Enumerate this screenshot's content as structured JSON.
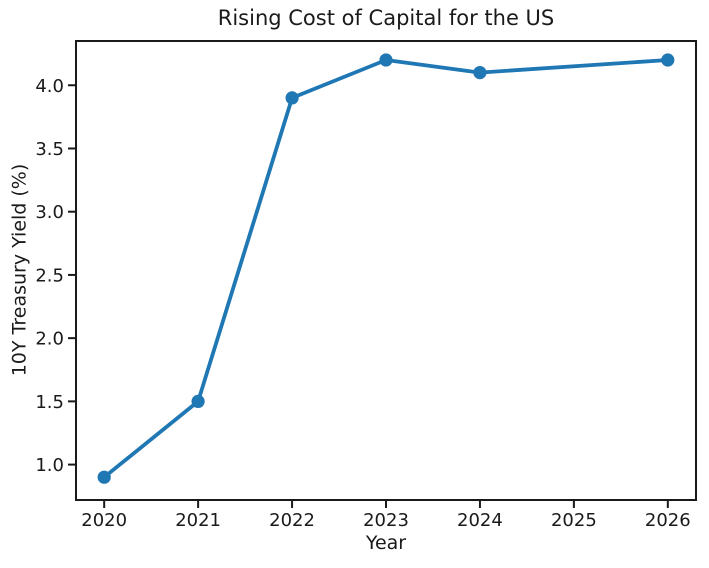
{
  "figure": {
    "background": "#ffffff"
  },
  "chart_data": {
    "type": "line",
    "title": "Rising Cost of Capital for the US",
    "xlabel": "Year",
    "ylabel": "10Y Treasury Yield (%)",
    "series": [
      {
        "x": [
          2020,
          2021,
          2022,
          2023,
          2024,
          2026
        ],
        "y": [
          0.9,
          1.5,
          3.9,
          4.2,
          4.1,
          4.2
        ],
        "color": "#1f77b4",
        "marker": "circle",
        "line_style": "solid"
      }
    ],
    "xlim": [
      2019.7,
      2026.3
    ],
    "ylim": [
      0.72,
      4.35
    ],
    "xticks": {
      "values": [
        2020,
        2021,
        2022,
        2023,
        2024,
        2025,
        2026
      ],
      "labels": [
        "2020",
        "2021",
        "2022",
        "2023",
        "2024",
        "2025",
        "2026"
      ]
    },
    "yticks": {
      "values": [
        1.0,
        1.5,
        2.0,
        2.5,
        3.0,
        3.5,
        4.0
      ],
      "labels": [
        "1.0",
        "1.5",
        "2.0",
        "2.5",
        "3.0",
        "3.5",
        "4.0"
      ]
    },
    "grid": false,
    "legend": false,
    "colors": {
      "line": "#1f77b4",
      "axis": "#1a1a1a",
      "text": "#1a1a1a",
      "background": "#ffffff"
    }
  }
}
